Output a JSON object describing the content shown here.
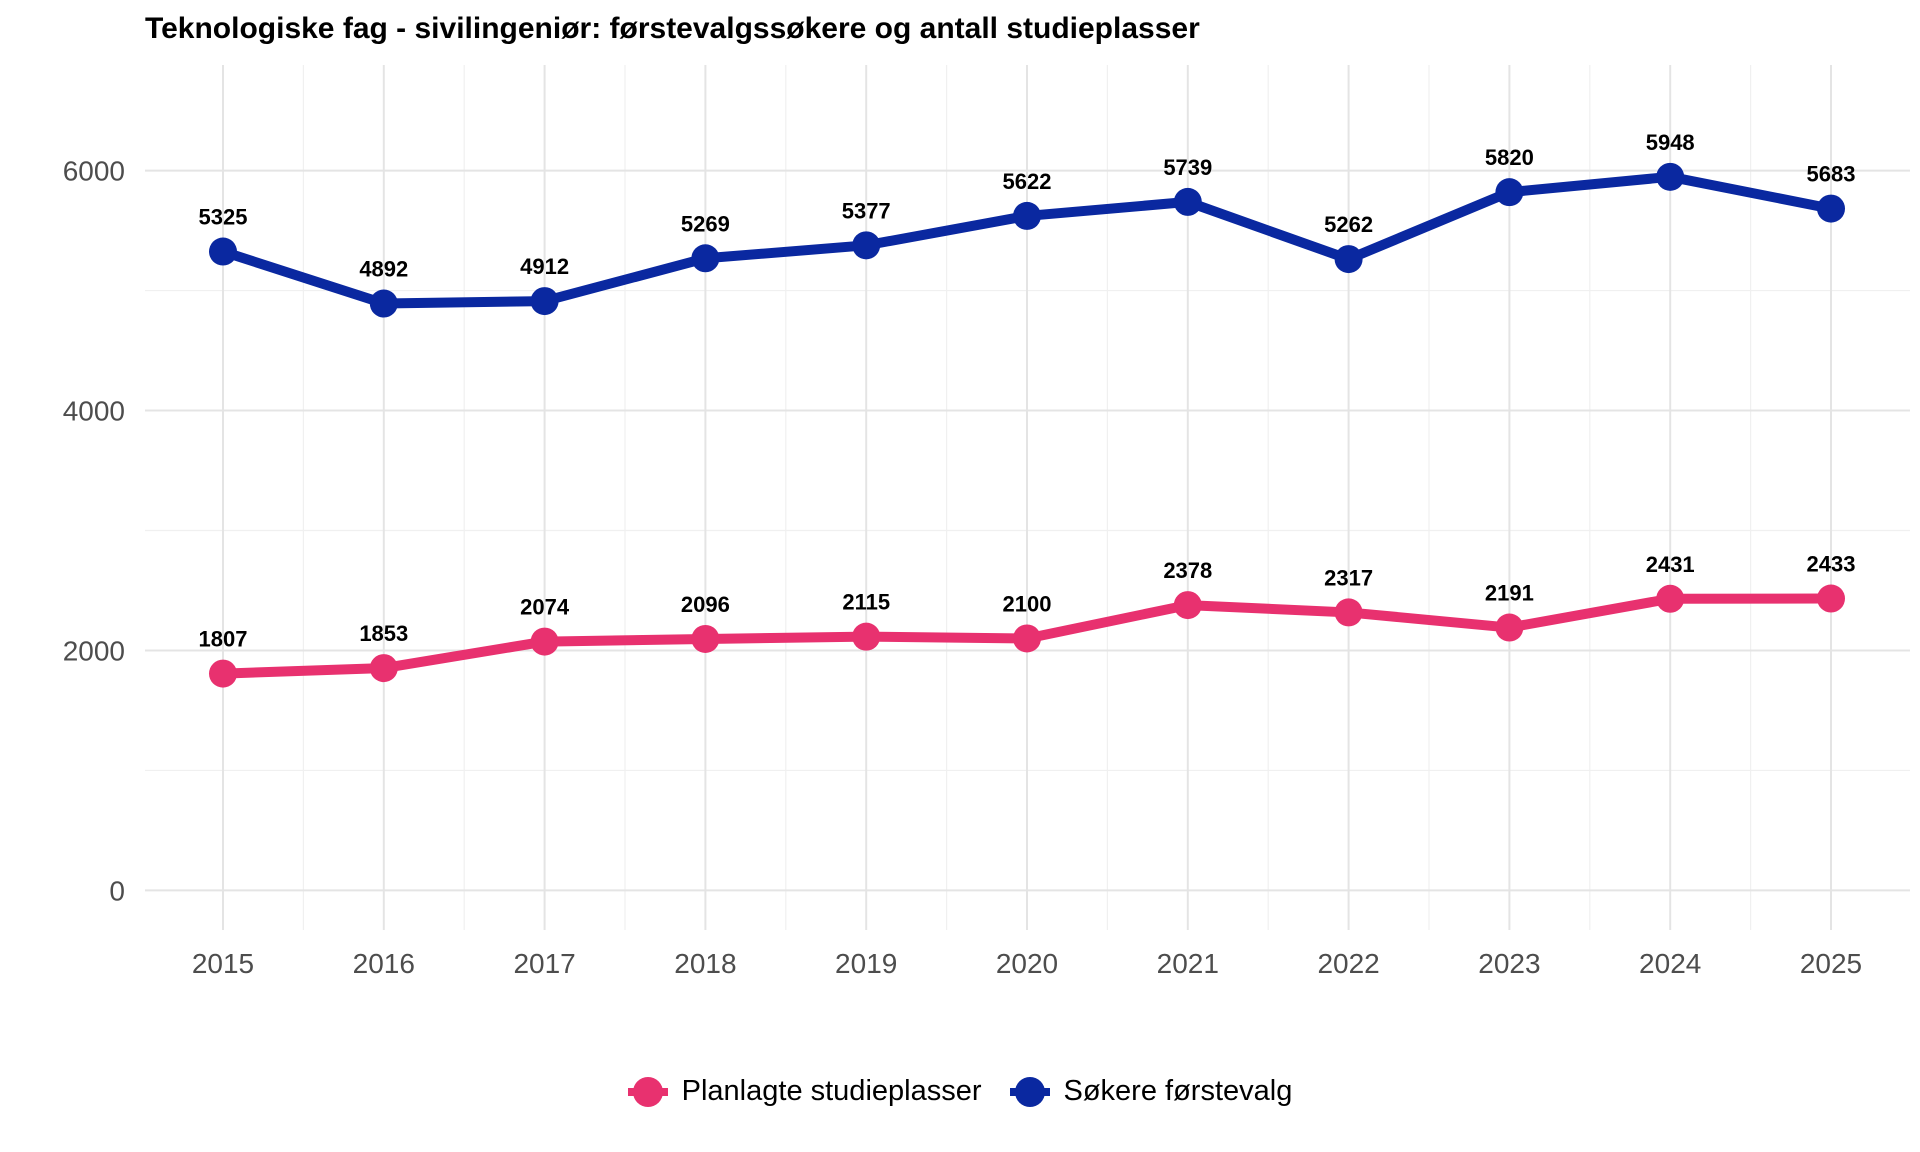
{
  "chart_data": {
    "type": "line",
    "title": "Teknologiske fag - sivilingeniør: førstevalgssøkere og antall studieplasser",
    "xlabel": "",
    "ylabel": "",
    "x": [
      "2015",
      "2016",
      "2017",
      "2018",
      "2019",
      "2020",
      "2021",
      "2022",
      "2023",
      "2024",
      "2025"
    ],
    "ylim": [
      -330,
      6880
    ],
    "yticks": [
      0,
      2000,
      4000,
      6000
    ],
    "grid": true,
    "legend_position": "bottom",
    "series": [
      {
        "name": "Planlagte studieplasser",
        "color": "#e8316f",
        "values": [
          1807,
          1853,
          2074,
          2096,
          2115,
          2100,
          2378,
          2317,
          2191,
          2431,
          2433
        ]
      },
      {
        "name": "Søkere førstevalg",
        "color": "#0a28a0",
        "values": [
          5325,
          4892,
          4912,
          5269,
          5377,
          5622,
          5739,
          5262,
          5820,
          5948,
          5683
        ]
      }
    ]
  }
}
